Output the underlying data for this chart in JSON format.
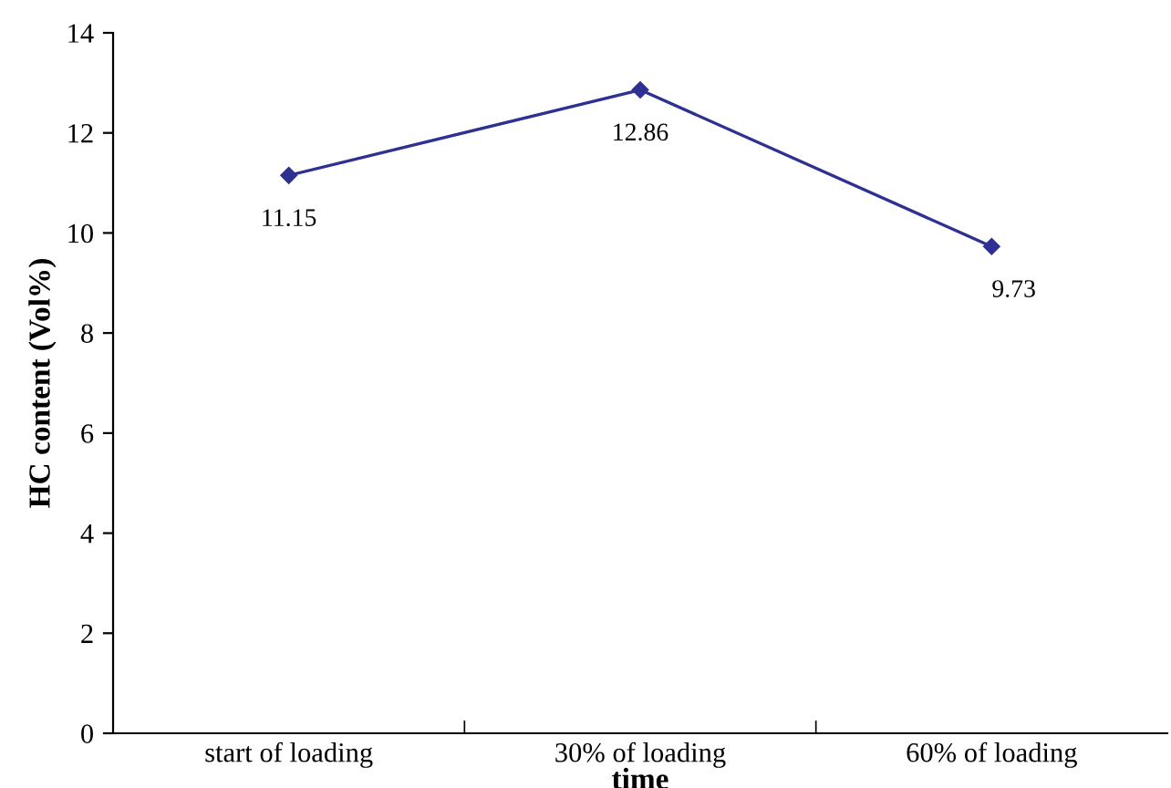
{
  "chart_data": {
    "type": "line",
    "xlabel": "time",
    "ylabel": "HC content (Vol%)",
    "categories": [
      "start of loading",
      "30% of loading",
      "60% of loading"
    ],
    "series": [
      {
        "color": "#2e3192",
        "values": [
          11.15,
          12.86,
          9.73
        ]
      }
    ],
    "ylim": [
      0,
      14
    ],
    "yticks": [
      0,
      2,
      4,
      6,
      8,
      10,
      12,
      14
    ],
    "grid": false,
    "legend": false,
    "marker": "diamond",
    "line_style": "solid",
    "data_labels": true
  }
}
